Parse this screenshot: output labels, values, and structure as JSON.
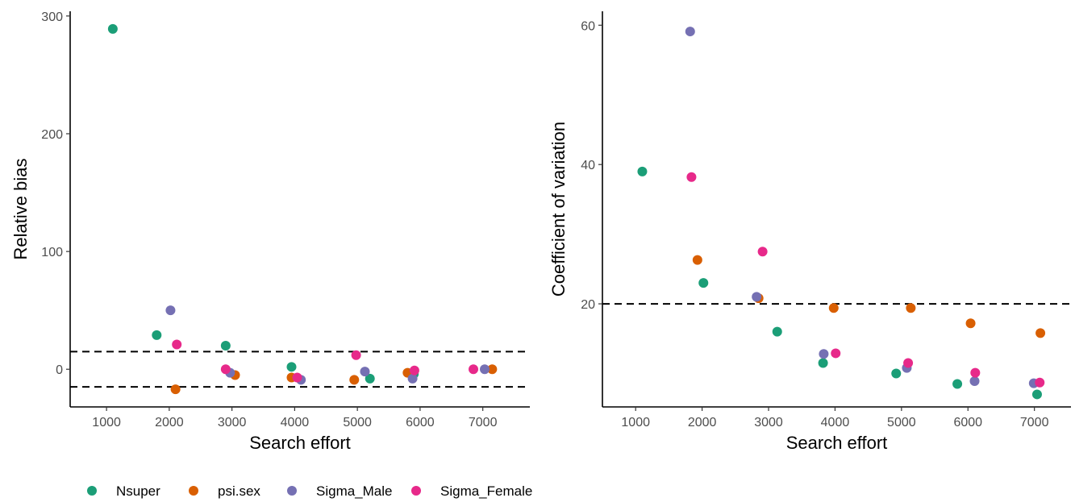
{
  "chart_data": [
    {
      "type": "scatter",
      "xlabel": "Search effort",
      "ylabel": "Relative bias",
      "xlim": [
        420,
        7750
      ],
      "ylim": [
        -32,
        304
      ],
      "xticks": [
        1000,
        2000,
        3000,
        4000,
        5000,
        6000,
        7000
      ],
      "yticks": [
        0,
        100,
        200,
        300
      ],
      "reference_lines": [
        15,
        -15
      ],
      "series": [
        {
          "name": "Nsuper",
          "color": "#1b9e77",
          "points": [
            [
              1100,
              289
            ],
            [
              1800,
              29
            ],
            [
              2900,
              20
            ],
            [
              3950,
              2
            ],
            [
              5200,
              -8
            ],
            [
              5900,
              -4
            ]
          ]
        },
        {
          "name": "psi.sex",
          "color": "#d95f02",
          "points": [
            [
              2100,
              -17
            ],
            [
              3050,
              -5
            ],
            [
              3950,
              -7
            ],
            [
              4950,
              -9
            ],
            [
              5800,
              -3
            ],
            [
              7150,
              0
            ]
          ]
        },
        {
          "name": "Sigma_Male",
          "color": "#7570b3",
          "points": [
            [
              2020,
              50
            ],
            [
              2970,
              -3
            ],
            [
              4100,
              -9
            ],
            [
              5120,
              -2
            ],
            [
              5880,
              -8
            ],
            [
              7030,
              0
            ]
          ]
        },
        {
          "name": "Sigma_Female",
          "color": "#e7298a",
          "points": [
            [
              2120,
              21
            ],
            [
              2900,
              0
            ],
            [
              4040,
              -7
            ],
            [
              4980,
              12
            ],
            [
              5910,
              -1
            ],
            [
              6850,
              0
            ]
          ]
        }
      ]
    },
    {
      "type": "scatter",
      "xlabel": "Search effort",
      "ylabel": "Coefficient of  variation",
      "xlim": [
        500,
        7550
      ],
      "ylim": [
        5.2,
        62
      ],
      "xticks": [
        1000,
        2000,
        3000,
        4000,
        5000,
        6000,
        7000
      ],
      "yticks": [
        20,
        40,
        60
      ],
      "reference_lines": [
        20
      ],
      "series": [
        {
          "name": "Nsuper",
          "color": "#1b9e77",
          "points": [
            [
              1100,
              39
            ],
            [
              2020,
              23
            ],
            [
              3130,
              16
            ],
            [
              3820,
              11.5
            ],
            [
              4920,
              10
            ],
            [
              5840,
              8.5
            ],
            [
              7040,
              7
            ]
          ]
        },
        {
          "name": "psi.sex",
          "color": "#d95f02",
          "points": [
            [
              1930,
              26.3
            ],
            [
              2850,
              20.8
            ],
            [
              3980,
              19.4
            ],
            [
              5140,
              19.4
            ],
            [
              6040,
              17.2
            ],
            [
              7090,
              15.8
            ]
          ]
        },
        {
          "name": "Sigma_Male",
          "color": "#7570b3",
          "points": [
            [
              1820,
              59.1
            ],
            [
              2820,
              21
            ],
            [
              3830,
              12.8
            ],
            [
              5080,
              10.8
            ],
            [
              6100,
              8.9
            ],
            [
              6990,
              8.6
            ]
          ]
        },
        {
          "name": "Sigma_Female",
          "color": "#e7298a",
          "points": [
            [
              1840,
              38.2
            ],
            [
              2910,
              27.5
            ],
            [
              4010,
              12.9
            ],
            [
              5100,
              11.5
            ],
            [
              6110,
              10.1
            ],
            [
              7080,
              8.7
            ]
          ]
        }
      ]
    }
  ],
  "legend": {
    "position": "bottom-left",
    "items": [
      {
        "label": "Nsuper",
        "color": "#1b9e77"
      },
      {
        "label": "psi.sex",
        "color": "#d95f02"
      },
      {
        "label": "Sigma_Male",
        "color": "#7570b3"
      },
      {
        "label": "Sigma_Female",
        "color": "#e7298a"
      }
    ]
  }
}
